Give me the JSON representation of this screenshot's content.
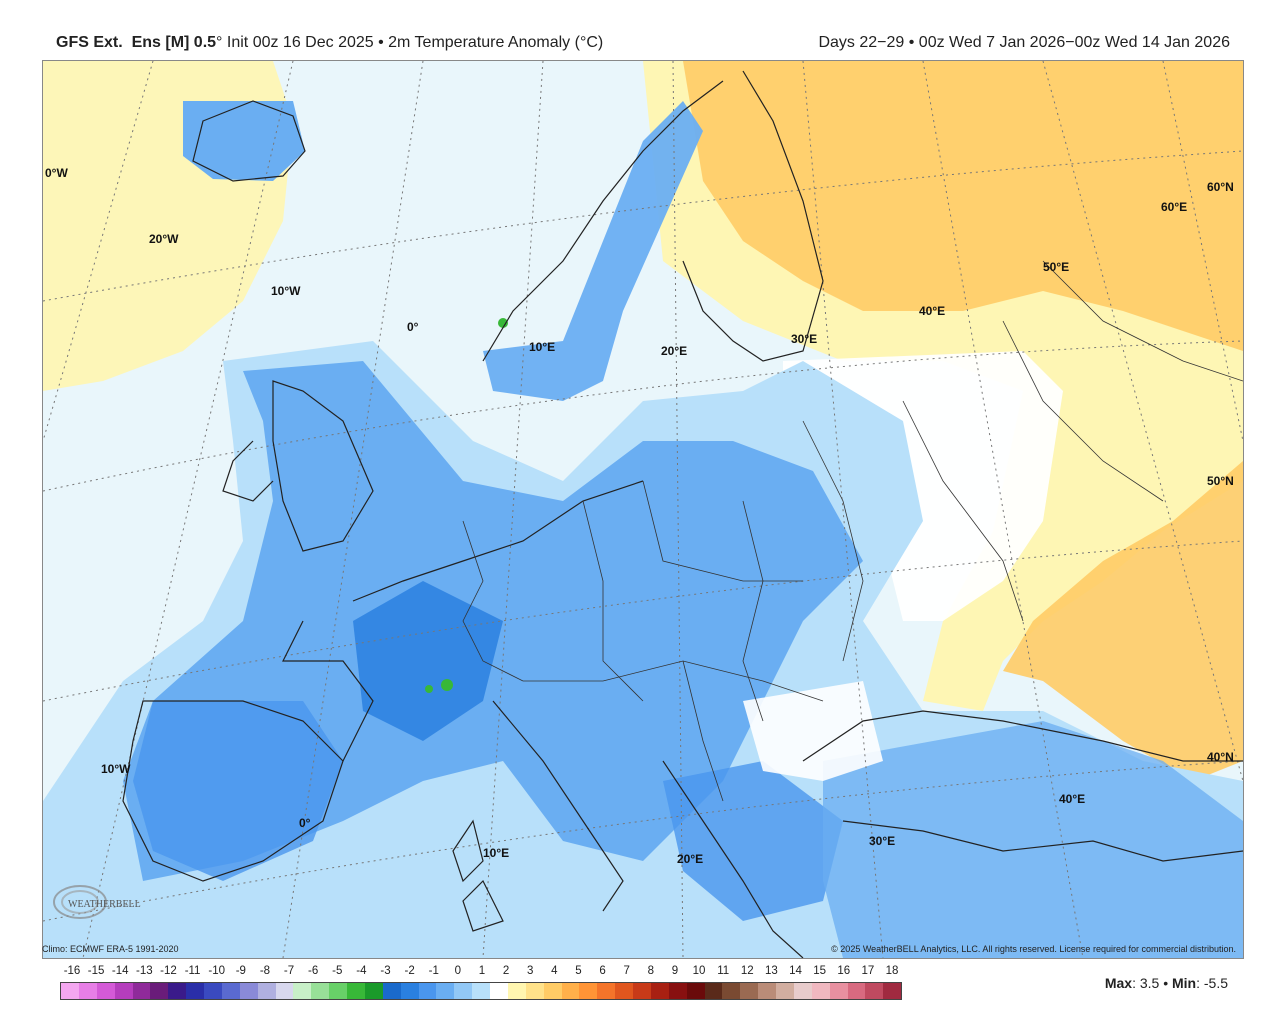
{
  "header": {
    "model": "GFS Ext.",
    "ens": "Ens [M] 0.5",
    "deg": "°",
    "init": " Init 00z 16 Dec 2025 • 2m Temperature Anomaly (°C)",
    "period": "Days 22−29 • 00z Wed 7 Jan 2026−00z Wed 14 Jan 2026"
  },
  "map": {
    "graticule_labels": {
      "w0_top": "0°W",
      "w20": "20°W",
      "w10_top": "10°W",
      "zero_top": "0°",
      "e10_top": "10°E",
      "e20_top": "20°E",
      "e30_top": "30°E",
      "e40_top": "40°E",
      "e50_top": "50°E",
      "e60_top": "60°E",
      "n60": "60°N",
      "n50": "50°N",
      "n40": "40°N",
      "w10_bottom": "10°W",
      "zero_bottom": "0°",
      "e10_bottom": "10°E",
      "e20_bottom": "20°E",
      "e30_bottom": "30°E",
      "e40_bottom": "40°E"
    },
    "logo_text": "WEATHERBELL"
  },
  "footer": {
    "climo": "Climo: ECMWF ERA-5 1991-2020",
    "copyright": "© 2025 WeatherBELL Analytics, LLC. All rights reserved. License required for commercial distribution.",
    "max_label": "Max",
    "max_value": ": 3.5 • ",
    "min_label": "Min",
    "min_value": ": -5.5"
  },
  "legend": {
    "ticks": [
      "-16",
      "-15",
      "-14",
      "-13",
      "-12",
      "-11",
      "-10",
      "-9",
      "-8",
      "-7",
      "-6",
      "-5",
      "-4",
      "-3",
      "-2",
      "-1",
      "0",
      "1",
      "2",
      "3",
      "4",
      "5",
      "6",
      "7",
      "8",
      "9",
      "10",
      "11",
      "12",
      "13",
      "14",
      "15",
      "16",
      "17",
      "18"
    ],
    "colors": [
      "#f4a7f0",
      "#e77ee6",
      "#d45ad7",
      "#b53dbd",
      "#8f2a9a",
      "#6a1c7a",
      "#3a1a8a",
      "#2a2ea8",
      "#3a4ac0",
      "#5a6ad0",
      "#8a8ad8",
      "#b0b0e0",
      "#d8d8ee",
      "#c8f0c8",
      "#98e098",
      "#68d068",
      "#38b838",
      "#1a9a2a",
      "#1a6acc",
      "#2a80e0",
      "#4a96ee",
      "#6aaef2",
      "#92c8f6",
      "#b8e0fa",
      "#ffffff",
      "#fff6b0",
      "#ffe28a",
      "#ffcc66",
      "#ffb04a",
      "#ff9436",
      "#f4742a",
      "#e0561e",
      "#c83a18",
      "#a82012",
      "#881010",
      "#6a0a0a",
      "#5a2a1a",
      "#7a4a32",
      "#9a6a52",
      "#ba8c78",
      "#d2aea0",
      "#e8cccc",
      "#f0b8c0",
      "#e890a0",
      "#d86a80",
      "#c04a60",
      "#a02a40"
    ]
  },
  "map_colors": {
    "ocean_neutral": "#e9f6fb",
    "light_blue": "#b8e0fa",
    "mid_blue": "#6aaef2",
    "deep_blue": "#2a80e0",
    "yellow": "#fff6b0",
    "orange": "#ffcc66",
    "dark_orange": "#ffb04a",
    "green": "#38b838"
  }
}
